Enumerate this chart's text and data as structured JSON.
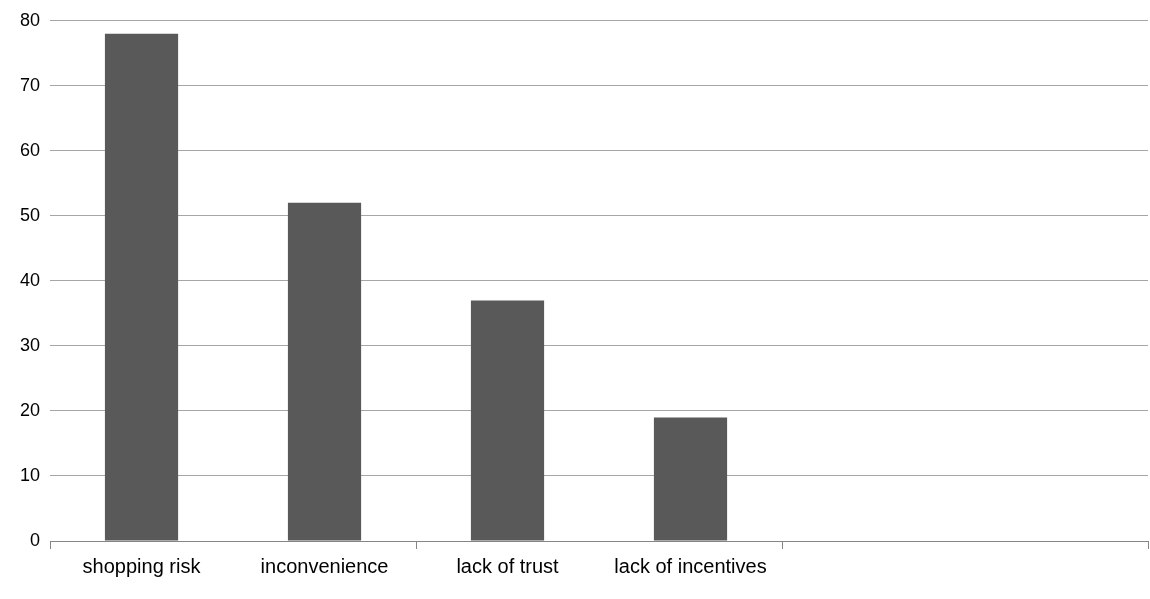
{
  "chart_data": {
    "type": "bar",
    "categories": [
      "shopping risk",
      "inconvenience",
      "lack of trust",
      "lack of incentives",
      null,
      null
    ],
    "values": [
      78,
      52,
      37,
      19,
      null,
      null
    ],
    "color": "#595959",
    "ylim": [
      0,
      80
    ],
    "yticks": [
      0,
      10,
      20,
      30,
      40,
      50,
      60,
      70,
      80
    ],
    "grid": "y"
  }
}
